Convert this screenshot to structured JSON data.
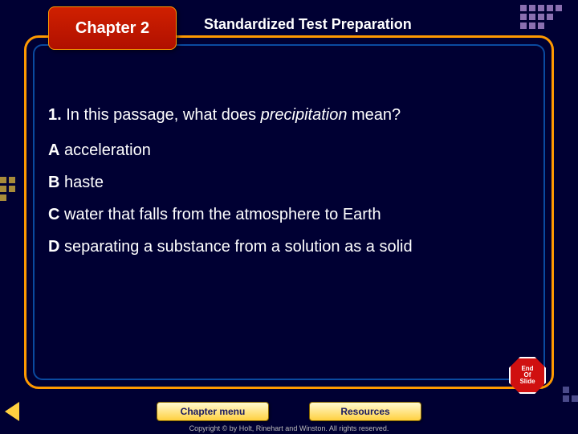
{
  "chapter_label": "Chapter 2",
  "slide_title": "Standardized Test Preparation",
  "question": {
    "number": "1.",
    "prefix": "In this passage, what does ",
    "italic": "precipitation",
    "suffix": " mean?"
  },
  "answers": [
    {
      "letter": "A",
      "text": "acceleration"
    },
    {
      "letter": "B",
      "text": "haste"
    },
    {
      "letter": "C",
      "text": "water that falls from the atmosphere to Earth"
    },
    {
      "letter": "D",
      "text": "separating a substance from a solution as a solid"
    }
  ],
  "nav": {
    "chapter_menu": "Chapter menu",
    "resources": "Resources"
  },
  "end_slide": {
    "line1": "End",
    "line2": "Of",
    "line3": "Slide"
  },
  "copyright": "Copyright © by Holt, Rinehart and Winston. All rights reserved.",
  "colors": {
    "bg": "#000033",
    "frame_outer": "#ff9900",
    "frame_inner": "#0a4aa0",
    "tab_bg": "#d02000",
    "btn_bg": "#ffd040",
    "stop_bg": "#d01010",
    "deco_purple": "#8a6fb0",
    "deco_gold": "#a88b3a"
  }
}
